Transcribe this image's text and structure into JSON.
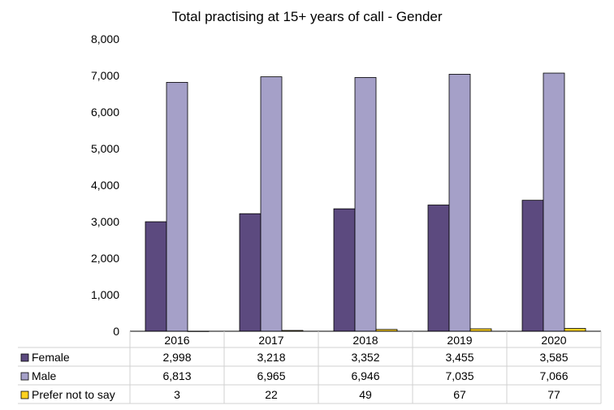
{
  "chart_data": {
    "type": "bar",
    "title": "Total practising at 15+ years of call - Gender",
    "categories": [
      "2016",
      "2017",
      "2018",
      "2019",
      "2020"
    ],
    "ylim": [
      0,
      8000
    ],
    "yticks": [
      0,
      1000,
      2000,
      3000,
      4000,
      5000,
      6000,
      7000,
      8000
    ],
    "ytick_labels": [
      "0",
      "1,000",
      "2,000",
      "3,000",
      "4,000",
      "5,000",
      "6,000",
      "7,000",
      "8,000"
    ],
    "grid": false,
    "legend_placement": "data-table-left",
    "series": [
      {
        "name": "Female",
        "color": "#5c4a7f",
        "values": [
          2998,
          3218,
          3352,
          3455,
          3585
        ],
        "labels": [
          "2,998",
          "3,218",
          "3,352",
          "3,455",
          "3,585"
        ]
      },
      {
        "name": "Male",
        "color": "#a5a0c8",
        "values": [
          6813,
          6965,
          6946,
          7035,
          7066
        ],
        "labels": [
          "6,813",
          "6,965",
          "6,946",
          "7,035",
          "7,066"
        ]
      },
      {
        "name": "Prefer not to say",
        "color": "#ffd21f",
        "values": [
          3,
          22,
          49,
          67,
          77
        ],
        "labels": [
          "3",
          "22",
          "49",
          "67",
          "77"
        ]
      }
    ]
  }
}
